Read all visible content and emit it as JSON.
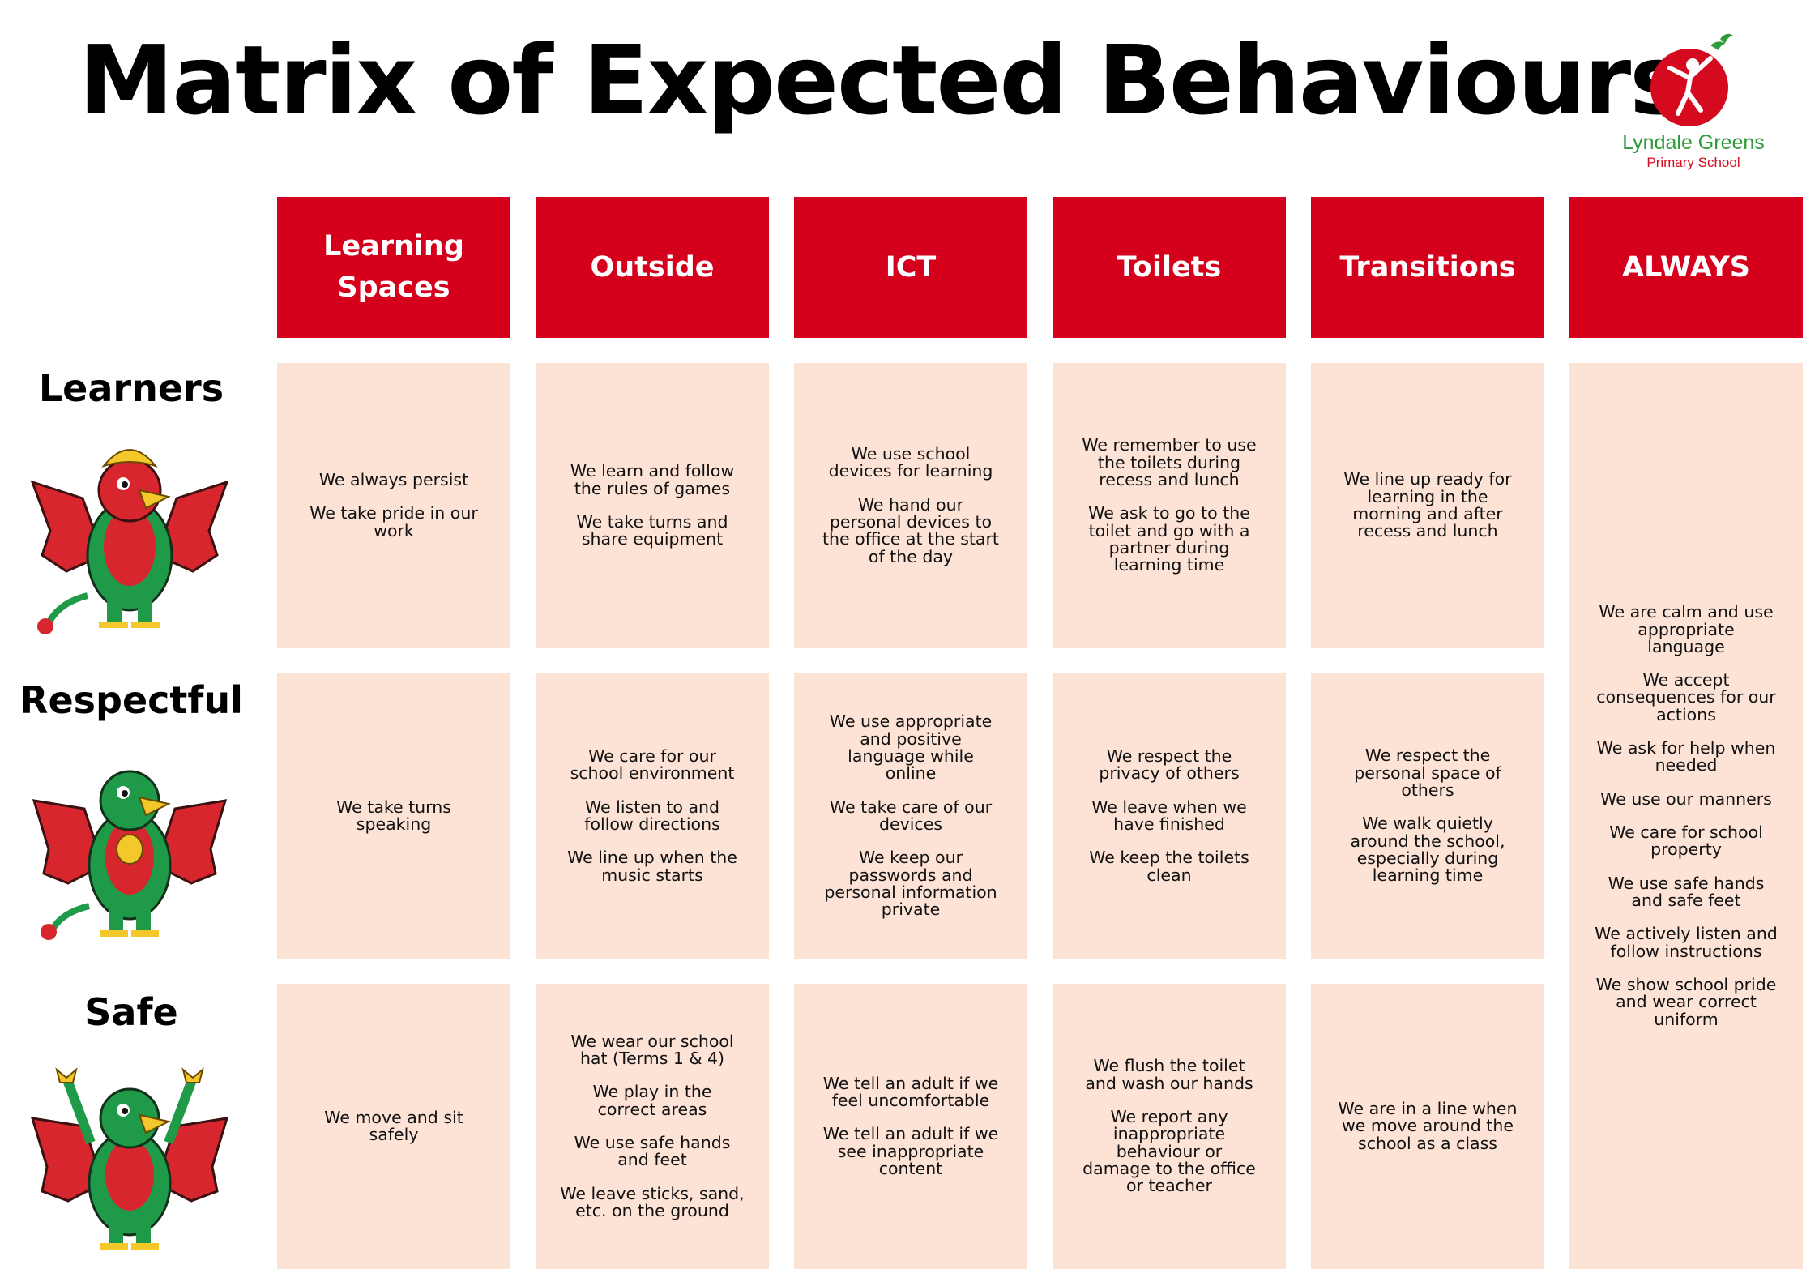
{
  "title": "Matrix of Expected Behaviours",
  "logo": {
    "name": "Lyndale Greens",
    "subtitle": "Primary School",
    "icon": "running-figure-logo-icon",
    "colors": {
      "red": "#d60a1e",
      "green": "#2e9a38"
    }
  },
  "colors": {
    "header": "#d5001c",
    "cell": "#fde2d6"
  },
  "columns": [
    "Learning\nSpaces",
    "Outside",
    "ICT",
    "Toilets",
    "Transitions",
    "ALWAYS"
  ],
  "rows": [
    {
      "label": "Learners",
      "mascot": "griffin-mascot-hands-on-head-icon",
      "cells": [
        [
          "We always persist",
          "We take pride in our\nwork"
        ],
        [
          "We learn and follow\nthe rules of games",
          "We take turns and\nshare equipment"
        ],
        [
          "We use school\ndevices for learning",
          "We hand our\npersonal devices to\nthe office at the start\nof the day"
        ],
        [
          "We remember to use\nthe toilets during\nrecess and lunch",
          "We ask to go to the\ntoilet and go with a\npartner during\nlearning time"
        ],
        [
          "We line up ready for\nlearning in the\nmorning and after\nrecess and lunch"
        ]
      ]
    },
    {
      "label": "Respectful",
      "mascot": "griffin-mascot-hands-clasped-icon",
      "cells": [
        [
          "We take turns\nspeaking"
        ],
        [
          "We care for our\nschool environment",
          "We listen to and\nfollow directions",
          "We line up when the\nmusic starts"
        ],
        [
          "We use appropriate\nand positive\nlanguage while\nonline",
          "We take care of our\ndevices",
          "We keep our\npasswords and\npersonal information\nprivate"
        ],
        [
          "We respect the\nprivacy of others",
          "We leave when we\nhave finished",
          "We keep the toilets\nclean"
        ],
        [
          "We respect the\npersonal space of\nothers",
          "We walk quietly\naround the school,\nespecially during\nlearning time"
        ]
      ]
    },
    {
      "label": "Safe",
      "mascot": "griffin-mascot-arms-raised-icon",
      "cells": [
        [
          "We move and sit\nsafely"
        ],
        [
          "We wear our school\nhat (Terms 1 & 4)",
          "We play in the\ncorrect areas",
          "We use safe hands\nand feet",
          "We leave sticks, sand,\netc. on the ground"
        ],
        [
          "We tell an adult if we\nfeel uncomfortable",
          "We tell an adult if we\nsee inappropriate\ncontent"
        ],
        [
          "We flush the toilet\nand wash our hands",
          "We report any\ninappropriate\nbehaviour or\ndamage to the office\nor teacher"
        ],
        [
          "We are in a line when\nwe move around the\nschool as a class"
        ]
      ]
    }
  ],
  "always": [
    "We are calm and use\nappropriate\nlanguage",
    "We accept\nconsequences for our\nactions",
    "We ask for help when\nneeded",
    "We use our manners",
    "We care for school\nproperty",
    "We use safe hands\nand safe feet",
    "We actively listen and\nfollow instructions",
    "We show school pride\nand wear correct\nuniform"
  ]
}
